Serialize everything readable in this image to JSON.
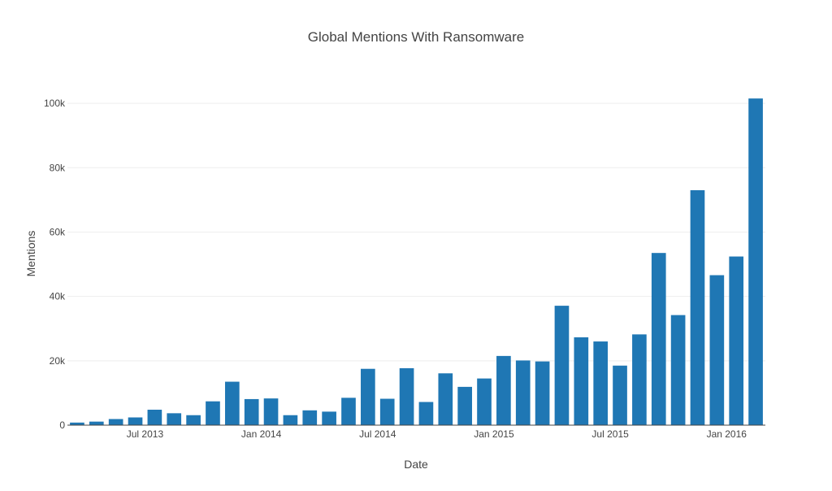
{
  "chart_data": {
    "type": "bar",
    "title": "Global Mentions With Ransomware",
    "xlabel": "Date",
    "ylabel": "Mentions",
    "x_start": "2013-03",
    "x_end": "2016-02",
    "x": [
      "2013-03",
      "2013-04",
      "2013-05",
      "2013-06",
      "2013-07",
      "2013-08",
      "2013-09",
      "2013-10",
      "2013-11",
      "2013-12",
      "2014-01",
      "2014-02",
      "2014-03",
      "2014-04",
      "2014-05",
      "2014-06",
      "2014-07",
      "2014-08",
      "2014-09",
      "2014-10",
      "2014-11",
      "2014-12",
      "2015-01",
      "2015-02",
      "2015-03",
      "2015-04",
      "2015-05",
      "2015-06",
      "2015-07",
      "2015-08",
      "2015-09",
      "2015-10",
      "2015-11",
      "2015-12",
      "2016-01",
      "2016-02"
    ],
    "values": [
      800,
      1100,
      1900,
      2400,
      4800,
      3700,
      3100,
      7400,
      13500,
      8100,
      8300,
      3100,
      4600,
      4200,
      8500,
      17500,
      8200,
      17700,
      7200,
      16100,
      11900,
      14500,
      21500,
      20100,
      19800,
      37100,
      27300,
      26000,
      18500,
      28200,
      53500,
      34200,
      73000,
      46600,
      52400,
      101500
    ],
    "x_ticks": [
      "Jul 2013",
      "Jan 2014",
      "Jul 2014",
      "Jan 2015",
      "Jul 2015",
      "Jan 2016"
    ],
    "x_tick_dates": [
      "2013-07",
      "2014-01",
      "2014-07",
      "2015-01",
      "2015-07",
      "2016-01"
    ],
    "y_ticks": [
      0,
      20000,
      40000,
      60000,
      80000,
      100000
    ],
    "y_tick_labels": [
      "0",
      "20k",
      "40k",
      "60k",
      "80k",
      "100k"
    ],
    "ylim": [
      0,
      106842
    ],
    "bar_color": "#1f77b4",
    "grid": true,
    "legend": false
  }
}
